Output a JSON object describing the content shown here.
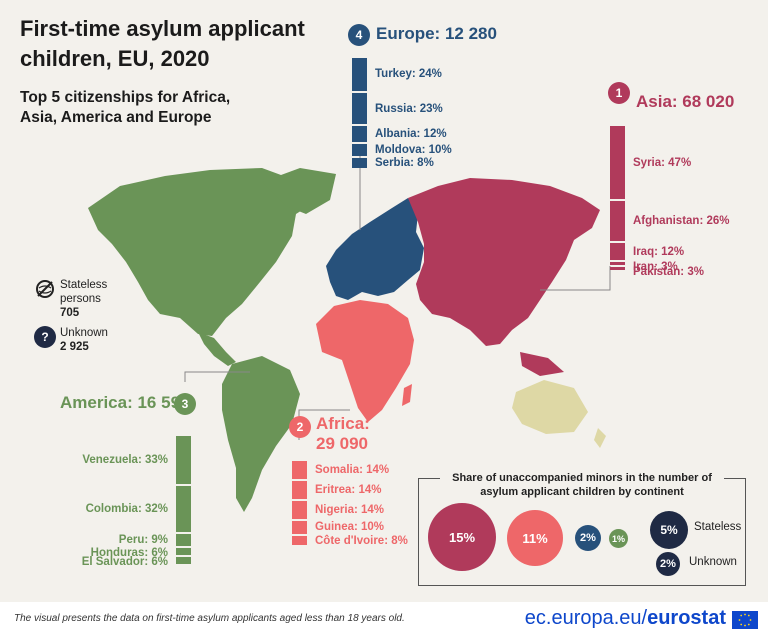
{
  "title": "First-time asylum applicant children, EU, 2020",
  "subtitle": "Top 5 citizenships for Africa, Asia, America and Europe",
  "colors": {
    "asia": "#b03a5b",
    "africa": "#ee6769",
    "america": "#6a9457",
    "europe": "#27517b",
    "oceania": "#ded8a5",
    "dark": "#1f2a44"
  },
  "chart_data": [
    {
      "type": "bar",
      "title": "Top 5 citizenships for Africa, Asia, America and Europe",
      "continents": [
        {
          "rank": "1",
          "name": "Asia",
          "label": "Asia: 68 020",
          "total": 68020,
          "categories": [
            "Syria",
            "Afghanistan",
            "Iraq",
            "Iran",
            "Pakistan"
          ],
          "values": [
            47,
            26,
            12,
            3,
            3
          ],
          "labels": [
            "Syria: 47%",
            "Afghanistan: 26%",
            "Iraq: 12%",
            "Iran: 3%",
            "Pakistan: 3%"
          ]
        },
        {
          "rank": "2",
          "name": "Africa",
          "label": "Africa:",
          "total_label": "29 090",
          "total": 29090,
          "categories": [
            "Somalia",
            "Eritrea",
            "Nigeria",
            "Guinea",
            "Côte d'Ivoire"
          ],
          "values": [
            14,
            14,
            14,
            10,
            8
          ],
          "labels": [
            "Somalia: 14%",
            "Eritrea: 14%",
            "Nigeria: 14%",
            "Guinea: 10%",
            "Côte d'Ivoire: 8%"
          ]
        },
        {
          "rank": "3",
          "name": "America",
          "label": "America: 16 590",
          "total": 16590,
          "categories": [
            "Venezuela",
            "Colombia",
            "Peru",
            "Honduras",
            "El Salvador"
          ],
          "values": [
            33,
            32,
            9,
            6,
            6
          ],
          "labels": [
            "Venezuela: 33%",
            "Colombia: 32%",
            "Peru: 9%",
            "Honduras: 6%",
            "El Salvador: 6%"
          ]
        },
        {
          "rank": "4",
          "name": "Europe",
          "label": "Europe: 12 280",
          "total": 12280,
          "categories": [
            "Turkey",
            "Russia",
            "Albania",
            "Moldova",
            "Serbia"
          ],
          "values": [
            24,
            23,
            12,
            10,
            8
          ],
          "labels": [
            "Turkey: 24%",
            "Russia: 23%",
            "Albania: 12%",
            "Moldova: 10%",
            "Serbia: 8%"
          ]
        }
      ],
      "other": [
        {
          "name": "Stateless persons",
          "label1": "Stateless",
          "label2": "persons",
          "value": 705,
          "value_label": "705"
        },
        {
          "name": "Unknown",
          "label1": "Unknown",
          "value": 2925,
          "value_label": "2 925"
        }
      ]
    },
    {
      "type": "bubble",
      "title": "Share of unaccompanied minors in the number of asylum applicant children by continent",
      "title_line1": "Share of unaccompanied minors in the number of",
      "title_line2": "asylum applicant children by continent",
      "categories": [
        "Asia",
        "Africa",
        "Europe",
        "America",
        "Stateless",
        "Unknown"
      ],
      "values": [
        15,
        11,
        2,
        1,
        5,
        2
      ],
      "labels": [
        "15%",
        "11%",
        "2%",
        "1%",
        "5%",
        "2%"
      ],
      "legend": [
        "Stateless",
        "Unknown"
      ]
    }
  ],
  "footer": {
    "note": "The visual presents the data on first-time asylum applicants aged less than 18 years old.",
    "brand_prefix": "ec.europa.eu/",
    "brand_name": "eurostat"
  }
}
